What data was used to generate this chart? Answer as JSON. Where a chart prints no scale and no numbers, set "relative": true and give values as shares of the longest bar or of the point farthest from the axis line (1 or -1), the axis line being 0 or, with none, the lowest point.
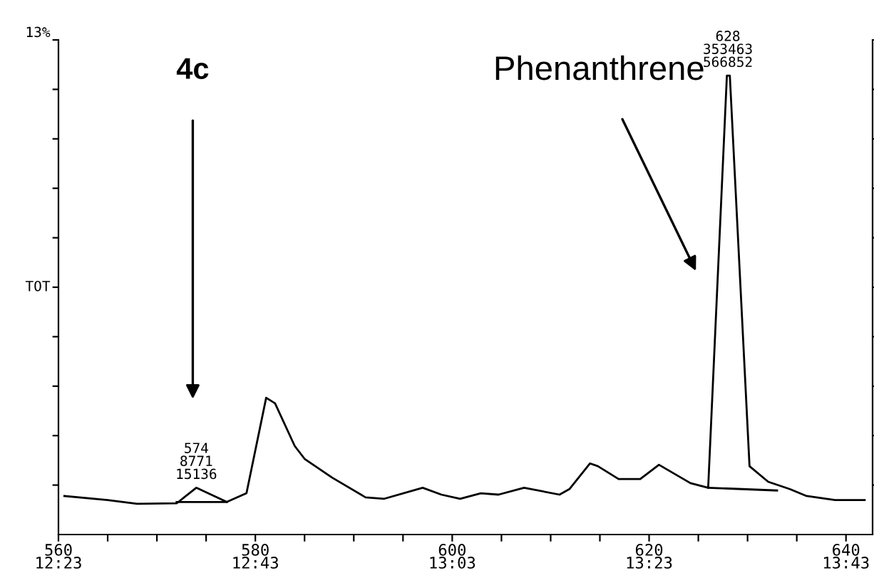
{
  "chart_data": {
    "type": "line",
    "relative": true,
    "x": [
      560.6,
      565,
      568,
      572,
      574,
      577.1,
      579.1,
      581.1,
      582,
      584,
      585,
      587.8,
      591.2,
      593.1,
      597,
      598.9,
      600.8,
      602.9,
      604.7,
      607.3,
      610.9,
      611.9,
      614,
      614.8,
      616.9,
      619.1,
      621,
      624.2,
      626,
      627.9,
      628.2,
      630.2,
      632.1,
      634.3,
      636,
      638.9,
      641.9
    ],
    "series": [
      {
        "color": "#000000",
        "values": [
          0.084,
          0.075,
          0.067,
          0.068,
          0.102,
          0.071,
          0.09,
          0.298,
          0.286,
          0.193,
          0.165,
          0.124,
          0.081,
          0.078,
          0.102,
          0.087,
          0.078,
          0.09,
          0.087,
          0.102,
          0.087,
          0.099,
          0.155,
          0.149,
          0.121,
          0.121,
          0.152,
          0.112,
          0.102,
          1,
          1,
          0.149,
          0.115,
          0.099,
          0.084,
          0.075,
          0.075
        ]
      },
      {
        "color": "#000000",
        "x": [
          572,
          577.1
        ],
        "values": [
          0.071,
          0.071
        ]
      },
      {
        "color": "#000000",
        "x": [
          626,
          633
        ],
        "values": [
          0.102,
          0.096
        ]
      }
    ],
    "xlim": [
      560,
      642.7
    ],
    "xticks": [
      560,
      {
        "value": 565,
        "label": null
      },
      {
        "value": 570,
        "label": null
      },
      {
        "value": 575,
        "label": null
      },
      580,
      {
        "value": 585,
        "label": null
      },
      {
        "value": 590,
        "label": null
      },
      {
        "value": 595,
        "label": null
      },
      600,
      {
        "value": 605,
        "label": null
      },
      {
        "value": 610,
        "label": null
      },
      {
        "value": 615,
        "label": null
      },
      620,
      {
        "value": 625,
        "label": null
      },
      {
        "value": 630,
        "label": null
      },
      {
        "value": 635,
        "label": null
      },
      640
    ],
    "x2lim": [
      12.3833,
      13.7617
    ],
    "x2ticks": [
      {
        "value": 12.3833,
        "label": "12:23"
      },
      {
        "value": 12.7167,
        "label": "12:43"
      },
      {
        "value": 13.05,
        "label": "13:03"
      },
      {
        "value": 13.3833,
        "label": "13:23"
      },
      {
        "value": 13.7167,
        "label": "13:43"
      }
    ],
    "grid": false,
    "legend": false,
    "annotations": [
      "13%",
      "TOT",
      {
        "text": "574\n8771\n15136",
        "x": 574,
        "y": 0.102
      },
      {
        "text": "628\n353463\n566852",
        "x": 628,
        "y": 1
      },
      "4c",
      "Phenanthrene"
    ]
  }
}
